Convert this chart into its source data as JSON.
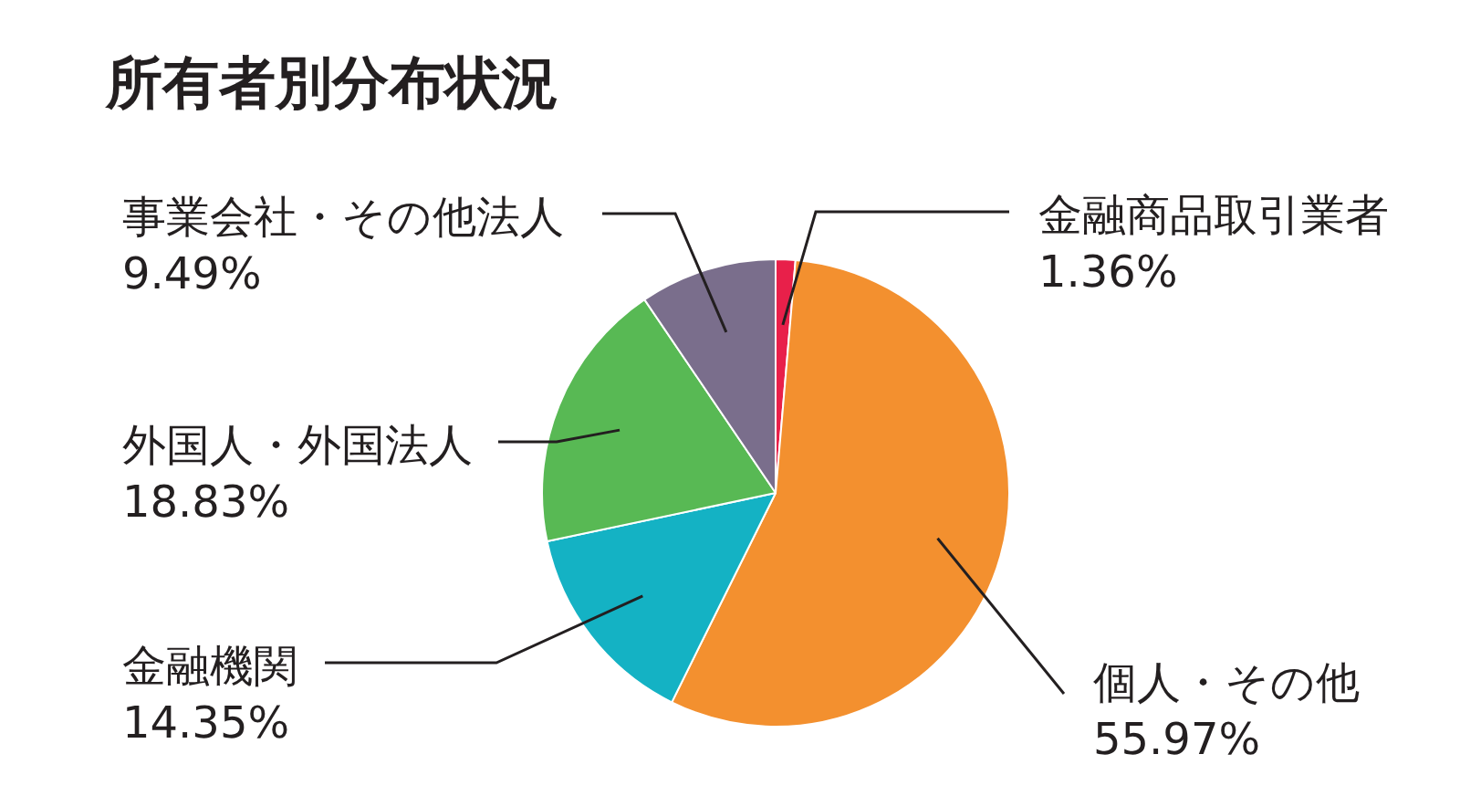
{
  "chart_data": {
    "type": "pie",
    "title": "所有者別分布状況",
    "categories": [
      "金融商品取引業者",
      "個人・その他",
      "金融機関",
      "外国人・外国法人",
      "事業会社・その他法人"
    ],
    "values": [
      1.36,
      55.97,
      14.35,
      18.83,
      9.49
    ],
    "colors": [
      "#e8204a",
      "#f3902f",
      "#14b2c4",
      "#58b954",
      "#7a6e8c"
    ],
    "value_labels": [
      "1.36%",
      "55.97%",
      "14.35%",
      "18.83%",
      "9.49%"
    ]
  }
}
